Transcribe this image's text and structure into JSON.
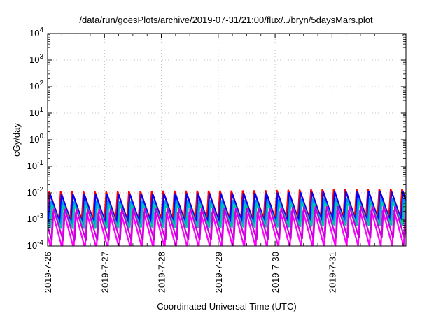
{
  "chart_data": {
    "type": "line",
    "title": "/data/run/goesPlots/archive/2019-07-31/21:00/flux/../bryn/5daysMars.plot",
    "xlabel": "Coordinated Universal Time (UTC)",
    "ylabel": "cGy/day",
    "x_ticks": [
      "2019-7-26",
      "2019-7-27",
      "2019-7-28",
      "2019-7-29",
      "2019-7-30",
      "2019-7-31"
    ],
    "y_scale": "log",
    "ylim": [
      0.0001,
      10000
    ],
    "y_ticks": [
      {
        "base": "10",
        "exp": "-4"
      },
      {
        "base": "10",
        "exp": "-3"
      },
      {
        "base": "10",
        "exp": "-2"
      },
      {
        "base": "10",
        "exp": "-1"
      },
      {
        "base": "10",
        "exp": "0"
      },
      {
        "base": "10",
        "exp": "1"
      },
      {
        "base": "10",
        "exp": "2"
      },
      {
        "base": "10",
        "exp": "3"
      },
      {
        "base": "10",
        "exp": "4"
      }
    ],
    "xlim_days": [
      0,
      6.3
    ],
    "grid": true,
    "legend": "none",
    "pattern": {
      "period_days": 0.2,
      "ramp_fraction": 0.15
    },
    "series": [
      {
        "color": "#ff0000",
        "peak_dex": [
          -1.95,
          -1.95,
          -1.92,
          -1.92,
          -1.9,
          -1.85
        ],
        "drop_dex": 1.05,
        "period_offset": 0.0
      },
      {
        "color": "#0000ff",
        "peak_dex": [
          -2.05,
          -2.05,
          -2.02,
          -2.02,
          -2.0,
          -1.95
        ],
        "drop_dex": 1.1,
        "period_offset": 0.015
      },
      {
        "color": "#0090ff",
        "peak_dex": [
          -2.3,
          -2.3,
          -2.28,
          -2.28,
          -2.25,
          -2.2
        ],
        "drop_dex": 1.0,
        "period_offset": 0.03
      },
      {
        "color": "#00c8a0",
        "peak_dex": [
          -2.45,
          -2.45,
          -2.42,
          -2.42,
          -2.4,
          -2.35
        ],
        "drop_dex": 0.9,
        "period_offset": 0.045
      },
      {
        "color": "#ff00ff",
        "peak_dex": [
          -2.75,
          -2.75,
          -2.72,
          -2.72,
          -2.7,
          -2.65
        ],
        "drop_dex": 1.35,
        "period_offset": 0.06
      },
      {
        "color": "#cc00dd",
        "peak_dex": [
          -2.6,
          -2.6,
          -2.58,
          -2.58,
          -2.55,
          -2.5
        ],
        "drop_dex": 1.2,
        "period_offset": 0.075
      }
    ]
  }
}
